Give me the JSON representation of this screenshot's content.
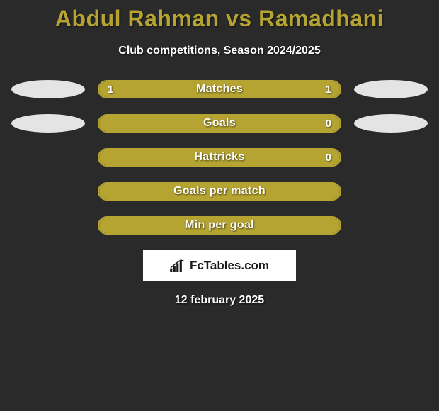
{
  "title": "Abdul Rahman vs Ramadhani",
  "subtitle": "Club competitions, Season 2024/2025",
  "date": "12 february 2025",
  "colors": {
    "background": "#2a2a2a",
    "accent": "#b5a432",
    "ellipse": "#e4e4e4",
    "text": "#ffffff",
    "brand_bg": "#ffffff",
    "brand_text": "#1a1a1a"
  },
  "brand": "FcTables.com",
  "rows": [
    {
      "label": "Matches",
      "left_value": "1",
      "right_value": "1",
      "show_left_value": true,
      "show_right_value": true,
      "left_fill_pct": 50,
      "right_fill_pct": 50,
      "full_fill": false,
      "show_left_ellipse": true,
      "show_right_ellipse": true
    },
    {
      "label": "Goals",
      "left_value": "",
      "right_value": "0",
      "show_left_value": false,
      "show_right_value": true,
      "left_fill_pct": 0,
      "right_fill_pct": 0,
      "full_fill": true,
      "show_left_ellipse": true,
      "show_right_ellipse": true
    },
    {
      "label": "Hattricks",
      "left_value": "",
      "right_value": "0",
      "show_left_value": false,
      "show_right_value": true,
      "left_fill_pct": 0,
      "right_fill_pct": 0,
      "full_fill": true,
      "show_left_ellipse": false,
      "show_right_ellipse": false
    },
    {
      "label": "Goals per match",
      "left_value": "",
      "right_value": "",
      "show_left_value": false,
      "show_right_value": false,
      "left_fill_pct": 0,
      "right_fill_pct": 0,
      "full_fill": true,
      "show_left_ellipse": false,
      "show_right_ellipse": false
    },
    {
      "label": "Min per goal",
      "left_value": "",
      "right_value": "",
      "show_left_value": false,
      "show_right_value": false,
      "left_fill_pct": 0,
      "right_fill_pct": 0,
      "full_fill": true,
      "show_left_ellipse": false,
      "show_right_ellipse": false
    }
  ]
}
